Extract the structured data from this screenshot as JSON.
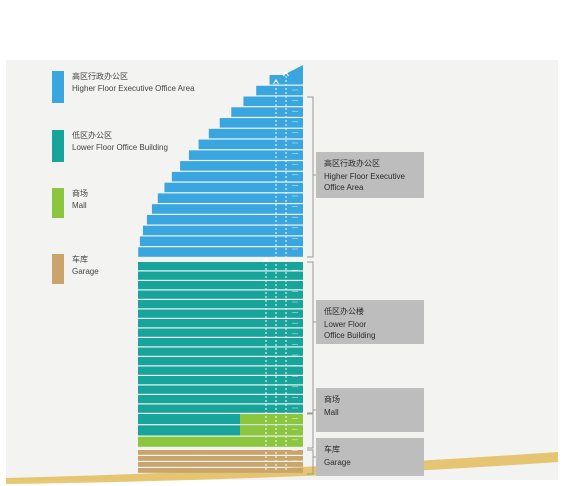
{
  "colors": {
    "executive": "#3aa6df",
    "office": "#17a49a",
    "mall": "#8cc63f",
    "garage": "#c9a46b",
    "callout_bg": "#bdbdbd",
    "bracket": "#999999",
    "gold": "#e0b545"
  },
  "legend": [
    {
      "zh": "高区行政办公区",
      "en": "Higher Floor Executive\nOffice Area",
      "color": "#3aa6df"
    },
    {
      "zh": "低区办公区",
      "en": "Lower Floor Office Building",
      "color": "#17a49a"
    },
    {
      "zh": "商场",
      "en": "Mall",
      "color": "#8cc63f"
    },
    {
      "zh": "车库",
      "en": "Garage",
      "color": "#c9a46b"
    }
  ],
  "callouts": [
    {
      "zh": "高区行政办公区",
      "en": "Higher Floor Executive\nOffice Area"
    },
    {
      "zh": "低区办公楼",
      "en": "Lower Floor\nOffice Building"
    },
    {
      "zh": "商场",
      "en": "Mall"
    },
    {
      "zh": "车库",
      "en": "Garage"
    }
  ],
  "floors": {
    "executive": 17,
    "office": 16,
    "mall": 3,
    "garage": 4
  }
}
